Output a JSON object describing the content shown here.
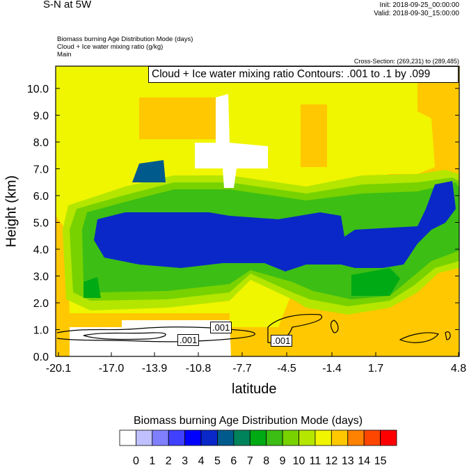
{
  "header": {
    "title": "S-N at 5W",
    "init": "Init: 2018-09-25_00:00:00",
    "valid": "Valid: 2018-09-30_15:00:00",
    "fields": [
      "Biomass burning Age Distribution Mode   (days)",
      "Cloud + Ice water mixing ratio   (g/kg)",
      "Main"
    ],
    "cross_section": "Cross-Section: (269,231) to (289,485)"
  },
  "chart_data": {
    "type": "heatmap",
    "title": "Cloud + Ice water mixing ratio Contours: .001 to .1 by .099",
    "xlabel": "latitude",
    "ylabel": "Height (km)",
    "xticks": [
      "-20.1",
      "-17.0",
      "-13.9",
      "-10.8",
      "-7.7",
      "-4.5",
      "-1.4",
      "1.7",
      "4.8"
    ],
    "yticks": [
      "0.0",
      "1.0",
      "2.0",
      "3.0",
      "4.0",
      "5.0",
      "6.0",
      "7.0",
      "8.0",
      "9.0",
      "10.0"
    ],
    "ylim": [
      0,
      10.9
    ],
    "xlim": [
      -20.1,
      4.8
    ],
    "contour_labels": [
      ".001",
      ".001",
      ".001"
    ],
    "colorbar": {
      "title": "Biomass burning Age Distribution Mode  (days)",
      "labels": [
        "0",
        "1",
        "2",
        "3",
        "4",
        "5",
        "6",
        "7",
        "8",
        "9",
        "10",
        "11",
        "12",
        "13",
        "14",
        "15"
      ],
      "colors": [
        "#ffffff",
        "#c0c0ff",
        "#8080ff",
        "#4040ff",
        "#0000ff",
        "#0a28c8",
        "#005a8c",
        "#00825a",
        "#00aa14",
        "#3cbe14",
        "#78d200",
        "#b4e600",
        "#f0f500",
        "#ffc800",
        "#ff8200",
        "#ff4600",
        "#ff0000"
      ]
    }
  }
}
